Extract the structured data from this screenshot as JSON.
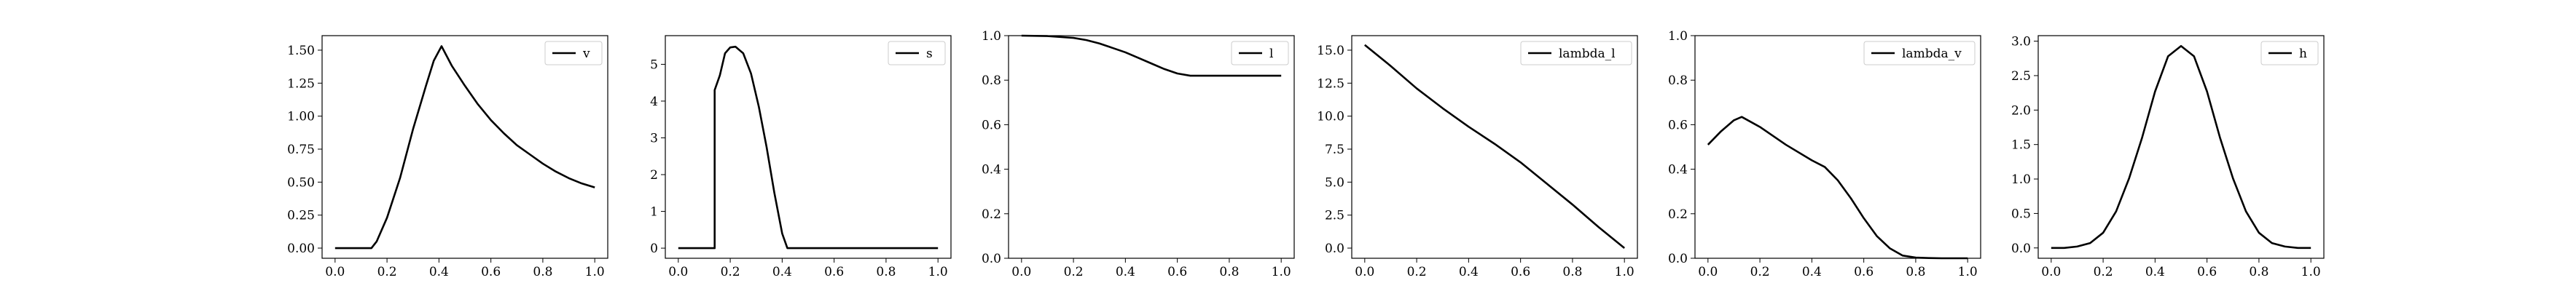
{
  "chart_data": [
    {
      "type": "line",
      "legend": "v",
      "legend_position": "upper-right",
      "xlim": [
        -0.05,
        1.05
      ],
      "ylim": [
        -0.077,
        1.61
      ],
      "xticks": [
        0.0,
        0.2,
        0.4,
        0.6,
        0.8,
        1.0
      ],
      "xtick_labels": [
        "0.0",
        "0.2",
        "0.4",
        "0.6",
        "0.8",
        "1.0"
      ],
      "yticks": [
        0.0,
        0.25,
        0.5,
        0.75,
        1.0,
        1.25,
        1.5
      ],
      "ytick_labels": [
        "0.00",
        "0.25",
        "0.50",
        "0.75",
        "1.00",
        "1.25",
        "1.50"
      ],
      "series": [
        {
          "x": [
            0.0,
            0.05,
            0.1,
            0.14,
            0.16,
            0.2,
            0.25,
            0.3,
            0.35,
            0.38,
            0.41,
            0.45,
            0.5,
            0.55,
            0.6,
            0.65,
            0.7,
            0.75,
            0.8,
            0.85,
            0.9,
            0.95,
            1.0
          ],
          "y": [
            0.0,
            0.0,
            0.0,
            0.0,
            0.05,
            0.23,
            0.53,
            0.9,
            1.23,
            1.42,
            1.53,
            1.38,
            1.23,
            1.09,
            0.97,
            0.87,
            0.78,
            0.71,
            0.64,
            0.58,
            0.53,
            0.49,
            0.46
          ]
        }
      ]
    },
    {
      "type": "line",
      "legend": "s",
      "legend_position": "upper-right",
      "xlim": [
        -0.05,
        1.05
      ],
      "ylim": [
        -0.275,
        5.78
      ],
      "xticks": [
        0.0,
        0.2,
        0.4,
        0.6,
        0.8,
        1.0
      ],
      "xtick_labels": [
        "0.0",
        "0.2",
        "0.4",
        "0.6",
        "0.8",
        "1.0"
      ],
      "yticks": [
        0,
        1,
        2,
        3,
        4,
        5
      ],
      "ytick_labels": [
        "0",
        "1",
        "2",
        "3",
        "4",
        "5"
      ],
      "series": [
        {
          "x": [
            0.0,
            0.1,
            0.14,
            0.14,
            0.16,
            0.18,
            0.2,
            0.22,
            0.25,
            0.28,
            0.31,
            0.34,
            0.37,
            0.4,
            0.42,
            0.5,
            0.6,
            0.7,
            0.8,
            0.9,
            1.0
          ],
          "y": [
            0.0,
            0.0,
            0.0,
            4.3,
            4.7,
            5.3,
            5.46,
            5.48,
            5.3,
            4.75,
            3.85,
            2.75,
            1.5,
            0.4,
            0.0,
            0.0,
            0.0,
            0.0,
            0.0,
            0.0,
            0.0
          ]
        }
      ]
    },
    {
      "type": "line",
      "legend": "l",
      "legend_position": "upper-right",
      "xlim": [
        -0.05,
        1.05
      ],
      "ylim": [
        0.0,
        1.0
      ],
      "xticks": [
        0.0,
        0.2,
        0.4,
        0.6,
        0.8,
        1.0
      ],
      "xtick_labels": [
        "0.0",
        "0.2",
        "0.4",
        "0.6",
        "0.8",
        "1.0"
      ],
      "yticks": [
        0.0,
        0.2,
        0.4,
        0.6,
        0.8,
        1.0
      ],
      "ytick_labels": [
        "0.0",
        "0.2",
        "0.4",
        "0.6",
        "0.8",
        "1.0"
      ],
      "series": [
        {
          "x": [
            0.0,
            0.1,
            0.2,
            0.25,
            0.3,
            0.35,
            0.4,
            0.45,
            0.5,
            0.55,
            0.6,
            0.65,
            0.7,
            0.75,
            0.8,
            0.9,
            1.0
          ],
          "y": [
            1.0,
            0.998,
            0.99,
            0.98,
            0.965,
            0.945,
            0.925,
            0.9,
            0.875,
            0.85,
            0.83,
            0.82,
            0.82,
            0.82,
            0.82,
            0.82,
            0.82
          ]
        }
      ]
    },
    {
      "type": "line",
      "legend": "lambda_l",
      "legend_position": "upper-right",
      "xlim": [
        -0.05,
        1.05
      ],
      "ylim": [
        -0.77,
        16.1
      ],
      "xticks": [
        0.0,
        0.2,
        0.4,
        0.6,
        0.8,
        1.0
      ],
      "xtick_labels": [
        "0.0",
        "0.2",
        "0.4",
        "0.6",
        "0.8",
        "1.0"
      ],
      "yticks": [
        0.0,
        2.5,
        5.0,
        7.5,
        10.0,
        12.5,
        15.0
      ],
      "ytick_labels": [
        "0.0",
        "2.5",
        "5.0",
        "7.5",
        "10.0",
        "12.5",
        "15.0"
      ],
      "series": [
        {
          "x": [
            0.0,
            0.1,
            0.2,
            0.3,
            0.4,
            0.5,
            0.6,
            0.7,
            0.8,
            0.9,
            1.0
          ],
          "y": [
            15.4,
            13.8,
            12.1,
            10.6,
            9.2,
            7.9,
            6.5,
            4.9,
            3.3,
            1.6,
            0.0
          ]
        }
      ]
    },
    {
      "type": "line",
      "legend": "lambda_v",
      "legend_position": "upper-right",
      "xlim": [
        -0.05,
        1.05
      ],
      "ylim": [
        0.0,
        1.0
      ],
      "xticks": [
        0.0,
        0.2,
        0.4,
        0.6,
        0.8,
        1.0
      ],
      "xtick_labels": [
        "0.0",
        "0.2",
        "0.4",
        "0.6",
        "0.8",
        "1.0"
      ],
      "yticks": [
        0.0,
        0.2,
        0.4,
        0.6,
        0.8,
        1.0
      ],
      "ytick_labels": [
        "0.0",
        "0.2",
        "0.4",
        "0.6",
        "0.8",
        "1.0"
      ],
      "series": [
        {
          "x": [
            0.0,
            0.05,
            0.1,
            0.13,
            0.2,
            0.3,
            0.4,
            0.45,
            0.5,
            0.55,
            0.6,
            0.65,
            0.7,
            0.75,
            0.8,
            0.85,
            0.9,
            1.0
          ],
          "y": [
            0.51,
            0.57,
            0.62,
            0.635,
            0.59,
            0.51,
            0.44,
            0.41,
            0.35,
            0.27,
            0.18,
            0.1,
            0.045,
            0.012,
            0.003,
            0.001,
            0.0,
            0.0
          ]
        }
      ]
    },
    {
      "type": "line",
      "legend": "h",
      "legend_position": "upper-right",
      "xlim": [
        -0.05,
        1.05
      ],
      "ylim": [
        -0.15,
        3.08
      ],
      "xticks": [
        0.0,
        0.2,
        0.4,
        0.6,
        0.8,
        1.0
      ],
      "xtick_labels": [
        "0.0",
        "0.2",
        "0.4",
        "0.6",
        "0.8",
        "1.0"
      ],
      "yticks": [
        0.0,
        0.5,
        1.0,
        1.5,
        2.0,
        2.5,
        3.0
      ],
      "ytick_labels": [
        "0.0",
        "0.5",
        "1.0",
        "1.5",
        "2.0",
        "2.5",
        "3.0"
      ],
      "series": [
        {
          "x": [
            0.0,
            0.05,
            0.1,
            0.15,
            0.2,
            0.25,
            0.3,
            0.35,
            0.4,
            0.45,
            0.5,
            0.55,
            0.6,
            0.65,
            0.7,
            0.75,
            0.8,
            0.85,
            0.9,
            0.95,
            1.0
          ],
          "y": [
            0.0,
            0.0,
            0.02,
            0.07,
            0.22,
            0.53,
            1.01,
            1.6,
            2.27,
            2.78,
            2.93,
            2.78,
            2.27,
            1.6,
            1.01,
            0.53,
            0.22,
            0.07,
            0.02,
            0.0,
            0.0
          ]
        }
      ]
    }
  ]
}
